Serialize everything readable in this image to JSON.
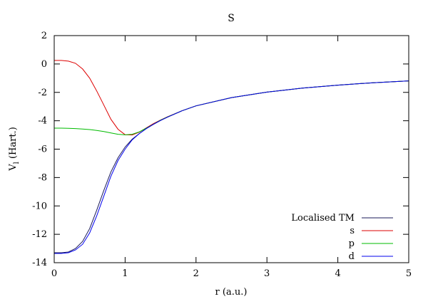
{
  "chart_data": {
    "type": "line",
    "title": "S",
    "xlabel": "r (a.u.)",
    "ylabel_main": "V",
    "ylabel_sub": "l",
    "ylabel_unit": " (Hart.)",
    "xlim": [
      0,
      5
    ],
    "ylim": [
      -14,
      2
    ],
    "xticks": [
      0,
      1,
      2,
      3,
      4,
      5
    ],
    "yticks": [
      2,
      0,
      -2,
      -4,
      -6,
      -8,
      -10,
      -12,
      -14
    ],
    "grid": false,
    "legend_position": "bottom-right",
    "series": [
      {
        "name": "Localised TM",
        "color": "#1a1a5a",
        "x": [
          0,
          0.1,
          0.2,
          0.3,
          0.4,
          0.5,
          0.6,
          0.7,
          0.8,
          0.9,
          1.0,
          1.1,
          1.2,
          1.3,
          1.4,
          1.5,
          1.6,
          1.8,
          2.0,
          2.5,
          3.0,
          3.5,
          4.0,
          4.5,
          5.0
        ],
        "y": [
          -13.3,
          -13.3,
          -13.25,
          -13.0,
          -12.5,
          -11.6,
          -10.3,
          -8.9,
          -7.6,
          -6.6,
          -5.85,
          -5.3,
          -4.9,
          -4.55,
          -4.25,
          -3.98,
          -3.74,
          -3.3,
          -2.95,
          -2.37,
          -1.98,
          -1.7,
          -1.49,
          -1.32,
          -1.19
        ]
      },
      {
        "name": "s",
        "color": "#dd0000",
        "x": [
          0,
          0.1,
          0.2,
          0.3,
          0.4,
          0.5,
          0.6,
          0.7,
          0.8,
          0.9,
          1.0,
          1.1,
          1.2,
          1.3,
          1.4,
          1.5,
          1.6,
          1.8,
          2.0,
          2.5,
          3.0,
          3.5,
          4.0,
          4.5,
          5.0
        ],
        "y": [
          0.25,
          0.25,
          0.2,
          0.05,
          -0.35,
          -1.0,
          -1.9,
          -2.9,
          -3.9,
          -4.6,
          -4.98,
          -5.0,
          -4.8,
          -4.5,
          -4.2,
          -3.95,
          -3.72,
          -3.3,
          -2.95,
          -2.37,
          -1.98,
          -1.7,
          -1.49,
          -1.32,
          -1.19
        ]
      },
      {
        "name": "p",
        "color": "#00bb00",
        "x": [
          0,
          0.1,
          0.2,
          0.3,
          0.4,
          0.5,
          0.6,
          0.7,
          0.8,
          0.9,
          1.0,
          1.1,
          1.2,
          1.3,
          1.4,
          1.5,
          1.6,
          1.8,
          2.0,
          2.5,
          3.0,
          3.5,
          4.0,
          4.5,
          5.0
        ],
        "y": [
          -4.52,
          -4.52,
          -4.53,
          -4.55,
          -4.58,
          -4.62,
          -4.68,
          -4.76,
          -4.86,
          -4.95,
          -4.99,
          -4.95,
          -4.78,
          -4.52,
          -4.24,
          -3.96,
          -3.73,
          -3.3,
          -2.95,
          -2.37,
          -1.98,
          -1.7,
          -1.49,
          -1.32,
          -1.19
        ]
      },
      {
        "name": "d",
        "color": "#0000ee",
        "x": [
          0,
          0.1,
          0.2,
          0.3,
          0.4,
          0.5,
          0.6,
          0.7,
          0.8,
          0.9,
          1.0,
          1.1,
          1.2,
          1.3,
          1.4,
          1.5,
          1.6,
          1.8,
          2.0,
          2.5,
          3.0,
          3.5,
          4.0,
          4.5,
          5.0
        ],
        "y": [
          -13.35,
          -13.35,
          -13.3,
          -13.1,
          -12.7,
          -11.9,
          -10.7,
          -9.3,
          -7.9,
          -6.8,
          -6.0,
          -5.35,
          -4.9,
          -4.55,
          -4.25,
          -3.98,
          -3.74,
          -3.3,
          -2.95,
          -2.37,
          -1.98,
          -1.7,
          -1.49,
          -1.32,
          -1.19
        ]
      }
    ]
  }
}
